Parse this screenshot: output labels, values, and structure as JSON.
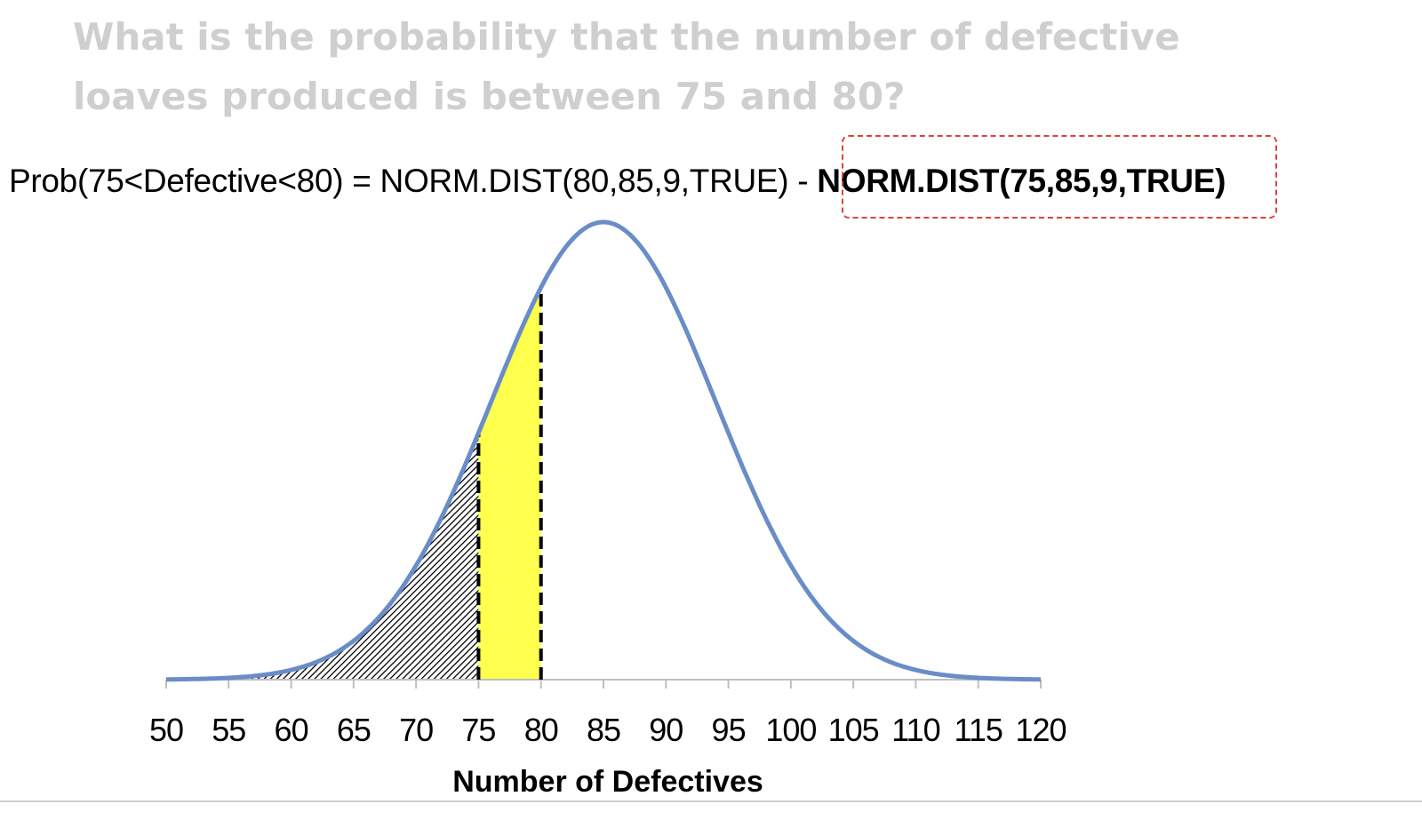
{
  "question": {
    "line1": "What is the probability that the number of defective",
    "line2": "loaves produced is between 75 and 80?"
  },
  "formula": {
    "lhs": "Prob(75<Defective<80) = NORM.DIST(80,85,9,TRUE) - ",
    "highlighted_term": "NORM.DIST(75,85,9,TRUE)"
  },
  "chart_data": {
    "type": "area",
    "distribution": "normal",
    "mean": 85,
    "sd": 9,
    "xlim": [
      50,
      120
    ],
    "x_ticks": [
      50,
      55,
      60,
      65,
      70,
      75,
      80,
      85,
      90,
      95,
      100,
      105,
      110,
      115,
      120
    ],
    "xlabel": "Number of Defectives",
    "shaded_regions": [
      {
        "from": 50,
        "to": 75,
        "style": "hatched"
      },
      {
        "from": 75,
        "to": 80,
        "style": "solid"
      }
    ],
    "markers": [
      75,
      80
    ],
    "colors": {
      "curve": "#6a8dc8",
      "highlight": "#ffff4d",
      "hatch": "#000000",
      "marker": "#000000",
      "axis": "#bfbfbf"
    }
  }
}
